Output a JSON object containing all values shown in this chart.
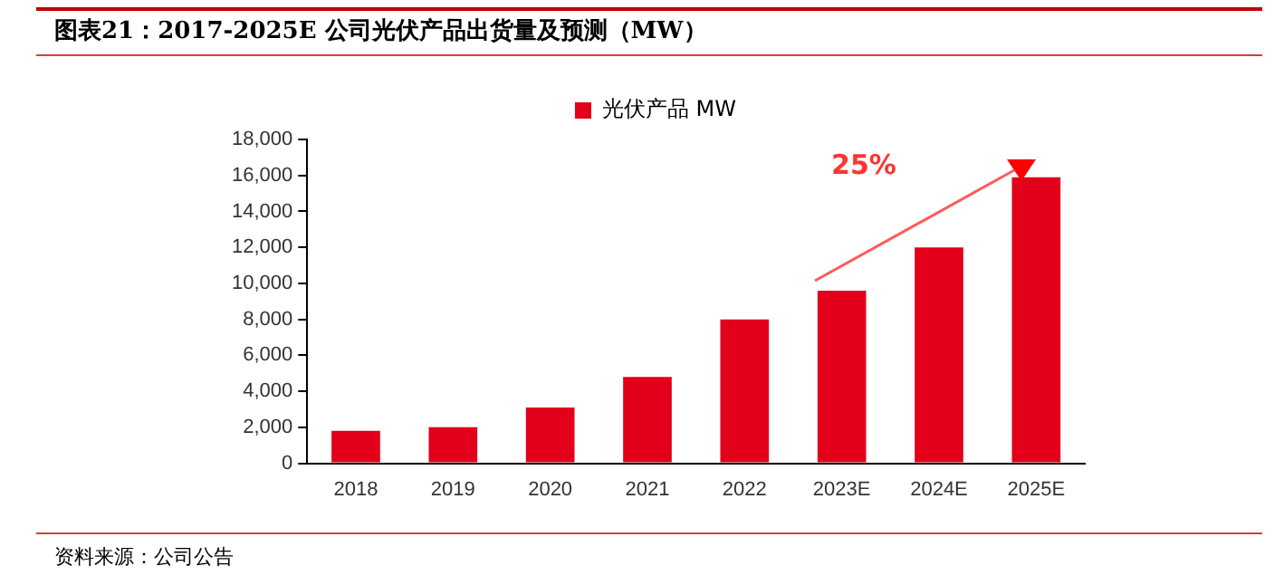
{
  "chart_data": {
    "type": "bar",
    "title": "图表21：2017-2025E 公司光伏产品出货量及预测（MW）",
    "categories": [
      "2018",
      "2019",
      "2020",
      "2021",
      "2022",
      "2023E",
      "2024E",
      "2025E"
    ],
    "series": [
      {
        "name": "光伏产品 MW",
        "color": "#e2001a",
        "values": [
          1800,
          2000,
          3100,
          4800,
          8000,
          9600,
          12000,
          15900
        ]
      }
    ],
    "ylim": [
      0,
      18000
    ],
    "yticks": [
      {
        "value": 0,
        "label": "0"
      },
      {
        "value": 2000,
        "label": "2,000"
      },
      {
        "value": 4000,
        "label": "4,000"
      },
      {
        "value": 6000,
        "label": "6,000"
      },
      {
        "value": 8000,
        "label": "8,000"
      },
      {
        "value": 10000,
        "label": "10,000"
      },
      {
        "value": 12000,
        "label": "12,000"
      },
      {
        "value": 14000,
        "label": "14,000"
      },
      {
        "value": 16000,
        "label": "16,000"
      },
      {
        "value": 18000,
        "label": "18,000"
      }
    ],
    "grid": false,
    "legend": "top",
    "annotations": [
      "25%",
      "资料来源：公司公告"
    ]
  }
}
